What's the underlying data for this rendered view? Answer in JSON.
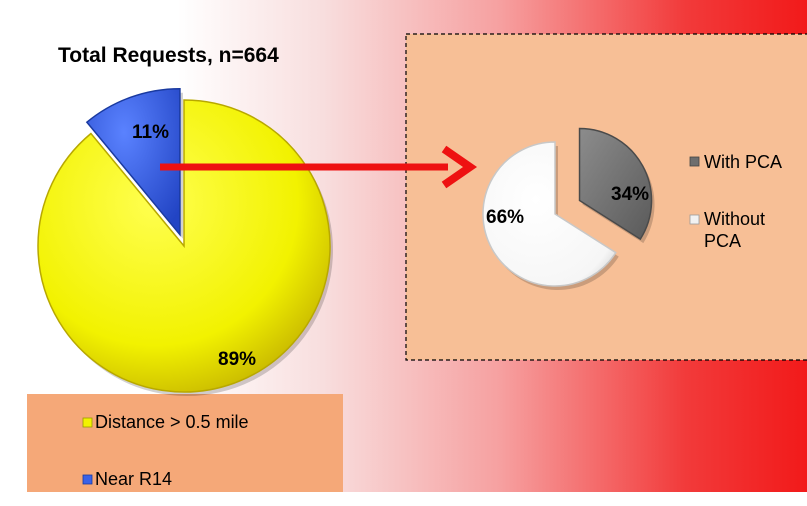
{
  "chart_data": [
    {
      "type": "pie",
      "title": "Total Requests, n=664",
      "labels": [
        "Near R14",
        "Distance > 0.5 mile"
      ],
      "values": [
        11,
        89
      ],
      "data_labels": [
        "11%",
        "89%"
      ],
      "colors": [
        "#3a62e8",
        "#f2f200"
      ],
      "exploded": "Near R14",
      "legend": {
        "position": "bottom-left",
        "entries": [
          "Distance > 0.5 mile",
          "Near R14"
        ]
      }
    },
    {
      "type": "pie",
      "title": "",
      "labels": [
        "With PCA",
        "Without PCA"
      ],
      "values": [
        34,
        66
      ],
      "data_labels": [
        "34%",
        "66%"
      ],
      "colors": [
        "#7a7a7a",
        "#ffffff"
      ],
      "exploded": "With PCA",
      "legend": {
        "position": "right",
        "entries": [
          "With PCA",
          "Without PCA"
        ]
      }
    }
  ],
  "colors": {
    "arrow": "#ee1111",
    "panel_fill": "#f7bf96",
    "legend_fill": "#f5a878"
  }
}
